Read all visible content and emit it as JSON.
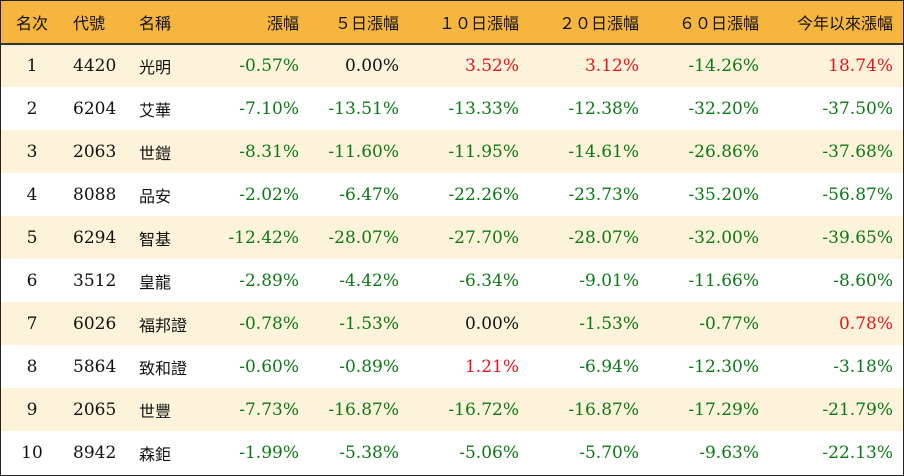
{
  "headers": [
    "名次",
    "代號",
    "名稱",
    "漲幅",
    "５日漲幅",
    "１０日漲幅",
    "２０日漲幅",
    "６０日漲幅",
    "今年以來漲幅"
  ],
  "rows": [
    [
      "1",
      "4420",
      "光明",
      "-0.57%",
      "0.00%",
      "3.52%",
      "3.12%",
      "-14.26%",
      "18.74%"
    ],
    [
      "2",
      "6204",
      "艾華",
      "-7.10%",
      "-13.51%",
      "-13.33%",
      "-12.38%",
      "-32.20%",
      "-37.50%"
    ],
    [
      "3",
      "2063",
      "世鎧",
      "-8.31%",
      "-11.60%",
      "-11.95%",
      "-14.61%",
      "-26.86%",
      "-37.68%"
    ],
    [
      "4",
      "8088",
      "品安",
      "-2.02%",
      "-6.47%",
      "-22.26%",
      "-23.73%",
      "-35.20%",
      "-56.87%"
    ],
    [
      "5",
      "6294",
      "智基",
      "-12.42%",
      "-28.07%",
      "-27.70%",
      "-28.07%",
      "-32.00%",
      "-39.65%"
    ],
    [
      "6",
      "3512",
      "皇龍",
      "-2.89%",
      "-4.42%",
      "-6.34%",
      "-9.01%",
      "-11.66%",
      "-8.60%"
    ],
    [
      "7",
      "6026",
      "福邦證",
      "-0.78%",
      "-1.53%",
      "0.00%",
      "-1.53%",
      "-0.77%",
      "0.78%"
    ],
    [
      "8",
      "5864",
      "致和證",
      "-0.60%",
      "-0.89%",
      "1.21%",
      "-6.94%",
      "-12.30%",
      "-3.18%"
    ],
    [
      "9",
      "2065",
      "世豐",
      "-7.73%",
      "-16.87%",
      "-16.72%",
      "-16.87%",
      "-17.29%",
      "-21.79%"
    ],
    [
      "10",
      "8942",
      "森鉅",
      "-1.99%",
      "-5.38%",
      "-5.06%",
      "-5.70%",
      "-9.63%",
      "-22.13%"
    ]
  ],
  "colors": {
    "header_bg": "#f5b53f",
    "odd_row_bg": "#fdf3da",
    "even_row_bg": "#ffffff",
    "positive": "#e8141c",
    "negative": "#0b7a14",
    "neutral": "#111111"
  }
}
